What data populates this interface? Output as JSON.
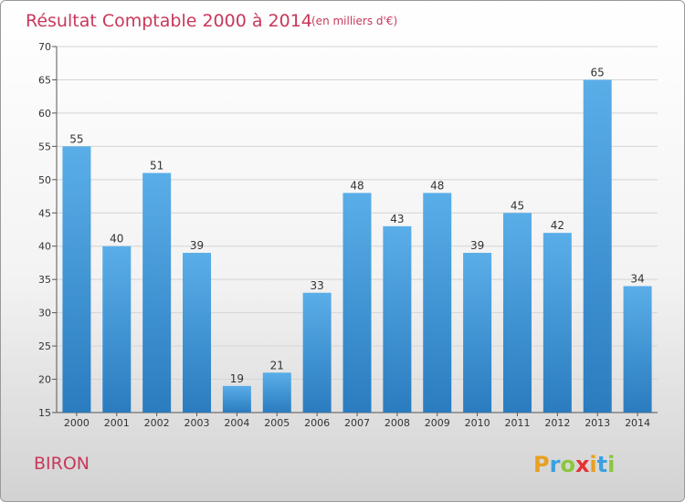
{
  "chart_data": {
    "type": "bar",
    "title": "Résultat Comptable 2000 à 2014",
    "subtitle": "(en milliers d'€)",
    "categories": [
      "2000",
      "2001",
      "2002",
      "2003",
      "2004",
      "2005",
      "2006",
      "2007",
      "2008",
      "2009",
      "2010",
      "2011",
      "2012",
      "2013",
      "2014"
    ],
    "values": [
      55,
      40,
      51,
      39,
      19,
      21,
      33,
      48,
      43,
      48,
      39,
      45,
      42,
      65,
      34
    ],
    "ylim": [
      15,
      70
    ],
    "yticks": [
      15,
      20,
      25,
      30,
      35,
      40,
      45,
      50,
      55,
      60,
      65,
      70
    ],
    "xlabel": "",
    "ylabel": "",
    "grid": true,
    "bar_color_top": "#5aaee8",
    "bar_color_bottom": "#2a7cbf"
  },
  "place_name": "BIRON",
  "logo": {
    "letters": [
      "P",
      "r",
      "o",
      "x",
      "i",
      "t",
      "i"
    ],
    "colors": [
      "#e8a020",
      "#3aa0e0",
      "#8cc63e",
      "#e83030",
      "#e8a020",
      "#3aa0e0",
      "#8cc63e"
    ]
  }
}
